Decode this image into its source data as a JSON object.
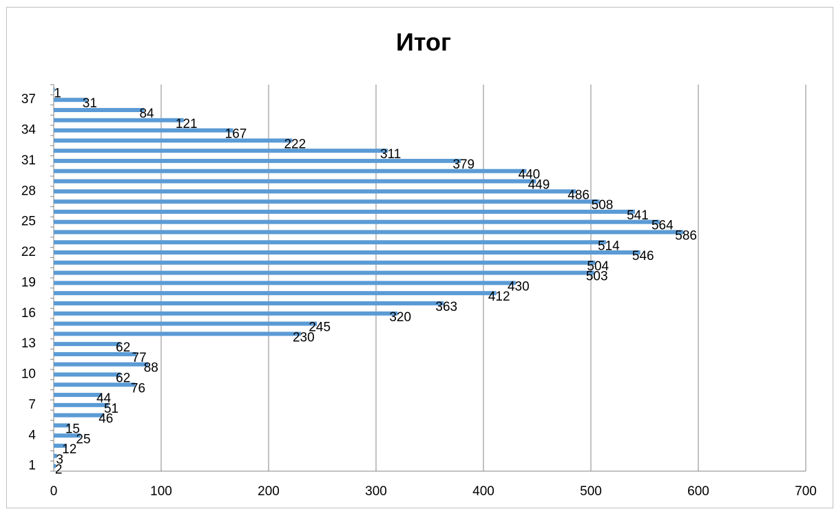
{
  "chart_data": {
    "type": "bar",
    "orientation": "horizontal",
    "title": "Итог",
    "categories": [
      "1",
      null,
      null,
      "4",
      null,
      null,
      "7",
      null,
      null,
      "10",
      null,
      null,
      "13",
      null,
      null,
      "16",
      null,
      null,
      "19",
      null,
      null,
      "22",
      null,
      null,
      "25",
      null,
      null,
      "28",
      null,
      null,
      "31",
      null,
      null,
      "34",
      null,
      null,
      "37",
      null
    ],
    "values": [
      2,
      3,
      12,
      25,
      15,
      46,
      51,
      44,
      76,
      62,
      88,
      77,
      62,
      230,
      245,
      320,
      363,
      412,
      430,
      503,
      504,
      546,
      514,
      586,
      564,
      541,
      508,
      486,
      449,
      440,
      379,
      311,
      222,
      167,
      121,
      84,
      31,
      1
    ],
    "color": "#5b9bd5",
    "xlim": [
      0,
      700
    ],
    "xticks": [
      0,
      100,
      200,
      300,
      400,
      500,
      600,
      700
    ],
    "grid": true
  }
}
